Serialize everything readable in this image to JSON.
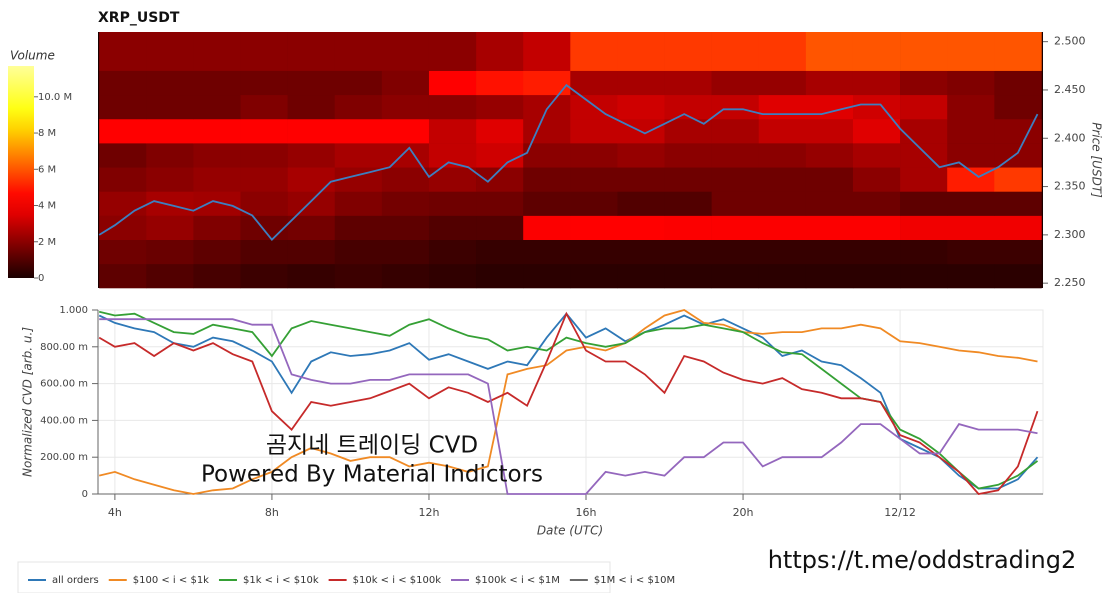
{
  "chart_data": [
    {
      "type": "heatmap",
      "title": "XRP_USDT",
      "ylabel": "Price [USDT]",
      "xlim": [
        3.57,
        27.64
      ],
      "ylim": [
        2.245,
        2.51
      ],
      "yticks": [
        {
          "value": 2.25,
          "label": "2.250"
        },
        {
          "value": 2.3,
          "label": "2.300"
        },
        {
          "value": 2.35,
          "label": "2.350"
        },
        {
          "value": 2.4,
          "label": "2.400"
        },
        {
          "value": 2.45,
          "label": "2.450"
        },
        {
          "value": 2.5,
          "label": "2.500"
        }
      ],
      "x_edges": [
        3.6,
        4.8,
        6.0,
        7.2,
        8.4,
        9.6,
        10.8,
        12.0,
        13.2,
        14.4,
        15.6,
        16.8,
        18.0,
        19.2,
        20.4,
        21.6,
        22.8,
        24.0,
        25.2,
        26.4,
        27.6
      ],
      "y_edges": [
        2.245,
        2.27,
        2.295,
        2.32,
        2.345,
        2.37,
        2.395,
        2.42,
        2.445,
        2.47,
        2.51
      ],
      "z": [
        [
          1200000,
          1000000,
          800000,
          600000,
          500000,
          600000,
          500000,
          400000,
          300000,
          300000,
          300000,
          300000,
          300000,
          300000,
          300000,
          300000,
          300000,
          300000,
          300000,
          300000
        ],
        [
          1500000,
          1400000,
          1200000,
          1000000,
          1000000,
          800000,
          800000,
          600000,
          500000,
          500000,
          500000,
          500000,
          500000,
          500000,
          500000,
          500000,
          500000,
          500000,
          600000,
          600000
        ],
        [
          2000000,
          2200000,
          1800000,
          1500000,
          1600000,
          1200000,
          1200000,
          1000000,
          1000000,
          4000000,
          4200000,
          4200000,
          4000000,
          4000000,
          4000000,
          4000000,
          4000000,
          3800000,
          3800000,
          3800000
        ],
        [
          2200000,
          2500000,
          2400000,
          2000000,
          2200000,
          1800000,
          1600000,
          1500000,
          1500000,
          1200000,
          1200000,
          1000000,
          1000000,
          1500000,
          1500000,
          1500000,
          1500000,
          1200000,
          1200000,
          1200000
        ],
        [
          1800000,
          2000000,
          2200000,
          2200000,
          2500000,
          2200000,
          2000000,
          2200000,
          2000000,
          1500000,
          1500000,
          1500000,
          1500000,
          1500000,
          1500000,
          1500000,
          2000000,
          2500000,
          5000000,
          5500000
        ],
        [
          1500000,
          1800000,
          2000000,
          2000000,
          2200000,
          2500000,
          2500000,
          3000000,
          3200000,
          2000000,
          2000000,
          2200000,
          2000000,
          2000000,
          2000000,
          2200000,
          2500000,
          2500000,
          2000000,
          2000000
        ],
        [
          4500000,
          4500000,
          4500000,
          4500000,
          4500000,
          4500000,
          4500000,
          3000000,
          3500000,
          2500000,
          3000000,
          3000000,
          2500000,
          2500000,
          3000000,
          3000000,
          3500000,
          2500000,
          2000000,
          2000000
        ],
        [
          1500000,
          1500000,
          1500000,
          1800000,
          1500000,
          1800000,
          2000000,
          2000000,
          2200000,
          2500000,
          3000000,
          3200000,
          3000000,
          3000000,
          3500000,
          3500000,
          3200000,
          3000000,
          2000000,
          1500000
        ],
        [
          1500000,
          1500000,
          1500000,
          1500000,
          1500000,
          1500000,
          1800000,
          4500000,
          4800000,
          5000000,
          2500000,
          2500000,
          2500000,
          2200000,
          2200000,
          2500000,
          2500000,
          2000000,
          1800000,
          1500000
        ],
        [
          2000000,
          2000000,
          2000000,
          2000000,
          2000000,
          2000000,
          2000000,
          2000000,
          2500000,
          3000000,
          5500000,
          5500000,
          5500000,
          5500000,
          5500000,
          6000000,
          6000000,
          6000000,
          6000000,
          6000000
        ]
      ],
      "colorbar": {
        "title": "Volume",
        "clim": [
          0,
          11700000
        ],
        "ticks": [
          0,
          {
            "value": 2000000,
            "label": "2 M"
          },
          {
            "value": 4000000,
            "label": "4 M"
          },
          {
            "value": 6000000,
            "label": "6 M"
          },
          {
            "value": 8000000,
            "label": "8 M"
          },
          {
            "value": 10000000,
            "label": "10.0 M"
          }
        ]
      },
      "line": {
        "color": "#3d7fc1",
        "x": [
          3.6,
          4.0,
          4.5,
          5.0,
          5.5,
          6.0,
          6.5,
          7.0,
          7.5,
          8.0,
          8.5,
          9.0,
          9.5,
          10.0,
          10.5,
          11.0,
          11.5,
          12.0,
          12.5,
          13.0,
          13.5,
          14.0,
          14.5,
          15.0,
          15.5,
          16.0,
          16.5,
          17.0,
          17.5,
          18.0,
          18.5,
          19.0,
          19.5,
          20.0,
          20.5,
          21.0,
          21.5,
          22.0,
          22.5,
          23.0,
          23.5,
          24.0,
          24.5,
          25.0,
          25.5,
          26.0,
          26.5,
          27.0,
          27.5
        ],
        "values": [
          2.3,
          2.31,
          2.325,
          2.335,
          2.33,
          2.325,
          2.335,
          2.33,
          2.32,
          2.295,
          2.315,
          2.335,
          2.355,
          2.36,
          2.365,
          2.37,
          2.39,
          2.36,
          2.375,
          2.37,
          2.355,
          2.375,
          2.385,
          2.43,
          2.455,
          2.44,
          2.425,
          2.415,
          2.405,
          2.415,
          2.425,
          2.415,
          2.43,
          2.43,
          2.425,
          2.425,
          2.425,
          2.425,
          2.43,
          2.435,
          2.435,
          2.41,
          2.39,
          2.37,
          2.375,
          2.36,
          2.37,
          2.385,
          2.425
        ]
      }
    },
    {
      "type": "line",
      "xlabel": "Date (UTC)",
      "ylabel": "Normalized CVD [arb. u.]",
      "xlim": [
        3.57,
        27.64
      ],
      "ylim": [
        0,
        1
      ],
      "xticks": [
        {
          "value": 4,
          "label": "4h"
        },
        {
          "value": 8,
          "label": "8h"
        },
        {
          "value": 12,
          "label": "12h"
        },
        {
          "value": 16,
          "label": "16h"
        },
        {
          "value": 20,
          "label": "20h"
        },
        {
          "value": 24,
          "label": "12/12"
        }
      ],
      "yticks": [
        0,
        {
          "value": 0.2,
          "label": "200.00 m"
        },
        {
          "value": 0.4,
          "label": "400.00 m"
        },
        {
          "value": 0.6,
          "label": "600.00 m"
        },
        {
          "value": 0.8,
          "label": "800.00 m"
        },
        {
          "value": 1,
          "label": "1.000"
        }
      ],
      "grid": true,
      "legend": "bottom",
      "annotations": [
        "곰지네 트레이딩 CVD",
        "Powered By Material Indictors"
      ],
      "x": [
        3.6,
        4.0,
        4.5,
        5.0,
        5.5,
        6.0,
        6.5,
        7.0,
        7.5,
        8.0,
        8.5,
        9.0,
        9.5,
        10.0,
        10.5,
        11.0,
        11.5,
        12.0,
        12.5,
        13.0,
        13.5,
        14.0,
        14.5,
        15.0,
        15.5,
        16.0,
        16.5,
        17.0,
        17.5,
        18.0,
        18.5,
        19.0,
        19.5,
        20.0,
        20.5,
        21.0,
        21.5,
        22.0,
        22.5,
        23.0,
        23.5,
        24.0,
        24.5,
        25.0,
        25.5,
        26.0,
        26.5,
        27.0,
        27.5
      ],
      "series": [
        {
          "name": "all orders",
          "color": "#2e78b7",
          "values": [
            0.97,
            0.93,
            0.9,
            0.88,
            0.82,
            0.8,
            0.85,
            0.83,
            0.78,
            0.72,
            0.55,
            0.72,
            0.77,
            0.75,
            0.76,
            0.78,
            0.82,
            0.73,
            0.76,
            0.72,
            0.68,
            0.72,
            0.7,
            0.85,
            0.98,
            0.85,
            0.9,
            0.83,
            0.88,
            0.92,
            0.97,
            0.92,
            0.95,
            0.9,
            0.85,
            0.75,
            0.78,
            0.72,
            0.7,
            0.63,
            0.55,
            0.3,
            0.25,
            0.2,
            0.1,
            0.03,
            0.03,
            0.08,
            0.2
          ]
        },
        {
          "name": "$100 < i < $1k",
          "color": "#f08a24",
          "values": [
            0.1,
            0.12,
            0.08,
            0.05,
            0.02,
            0.0,
            0.02,
            0.03,
            0.08,
            0.12,
            0.2,
            0.25,
            0.22,
            0.18,
            0.2,
            0.2,
            0.15,
            0.17,
            0.15,
            0.12,
            0.15,
            0.65,
            0.68,
            0.7,
            0.78,
            0.8,
            0.78,
            0.82,
            0.9,
            0.97,
            1.0,
            0.93,
            0.92,
            0.88,
            0.87,
            0.88,
            0.88,
            0.9,
            0.9,
            0.92,
            0.9,
            0.83,
            0.82,
            0.8,
            0.78,
            0.77,
            0.75,
            0.74,
            0.72
          ]
        },
        {
          "name": "$1k < i < $10k",
          "color": "#35a035",
          "values": [
            0.99,
            0.97,
            0.98,
            0.93,
            0.88,
            0.87,
            0.92,
            0.9,
            0.88,
            0.75,
            0.9,
            0.94,
            0.92,
            0.9,
            0.88,
            0.86,
            0.92,
            0.95,
            0.9,
            0.86,
            0.84,
            0.78,
            0.8,
            0.78,
            0.85,
            0.82,
            0.8,
            0.82,
            0.88,
            0.9,
            0.9,
            0.92,
            0.9,
            0.88,
            0.82,
            0.77,
            0.76,
            0.68,
            0.6,
            0.52,
            0.5,
            0.35,
            0.3,
            0.22,
            0.12,
            0.03,
            0.05,
            0.1,
            0.18
          ]
        },
        {
          "name": "$10k < i < $100k",
          "color": "#c62a2a",
          "values": [
            0.85,
            0.8,
            0.82,
            0.75,
            0.82,
            0.78,
            0.82,
            0.76,
            0.72,
            0.45,
            0.35,
            0.5,
            0.48,
            0.5,
            0.52,
            0.56,
            0.6,
            0.52,
            0.58,
            0.55,
            0.5,
            0.55,
            0.48,
            0.72,
            0.98,
            0.78,
            0.72,
            0.72,
            0.65,
            0.55,
            0.75,
            0.72,
            0.66,
            0.62,
            0.6,
            0.63,
            0.57,
            0.55,
            0.52,
            0.52,
            0.5,
            0.32,
            0.28,
            0.2,
            0.12,
            0.0,
            0.02,
            0.15,
            0.45
          ]
        },
        {
          "name": "$100k < i < $1M",
          "color": "#9467bd",
          "values": [
            0.95,
            0.95,
            0.95,
            0.95,
            0.95,
            0.95,
            0.95,
            0.95,
            0.92,
            0.92,
            0.65,
            0.62,
            0.6,
            0.6,
            0.62,
            0.62,
            0.65,
            0.65,
            0.65,
            0.65,
            0.6,
            0.0,
            0.0,
            0.0,
            0.0,
            0.0,
            0.12,
            0.1,
            0.12,
            0.1,
            0.2,
            0.2,
            0.28,
            0.28,
            0.15,
            0.2,
            0.2,
            0.2,
            0.28,
            0.38,
            0.38,
            0.3,
            0.22,
            0.22,
            0.38,
            0.35,
            0.35,
            0.35,
            0.33
          ]
        },
        {
          "name": "$1M < i < $10M",
          "color": "#6b6b6b",
          "values": [
            null,
            null,
            null,
            null,
            null,
            null,
            null,
            null,
            null,
            null,
            null,
            null,
            null,
            null,
            null,
            null,
            null,
            null,
            null,
            null,
            null,
            null,
            null,
            null,
            null,
            null,
            null,
            null,
            null,
            null,
            null,
            null,
            null,
            null,
            null,
            null,
            null,
            null,
            null,
            null,
            null,
            null,
            null,
            null,
            null,
            null,
            null,
            null,
            null
          ]
        }
      ]
    }
  ],
  "footer": "https://t.me/oddstrading2"
}
